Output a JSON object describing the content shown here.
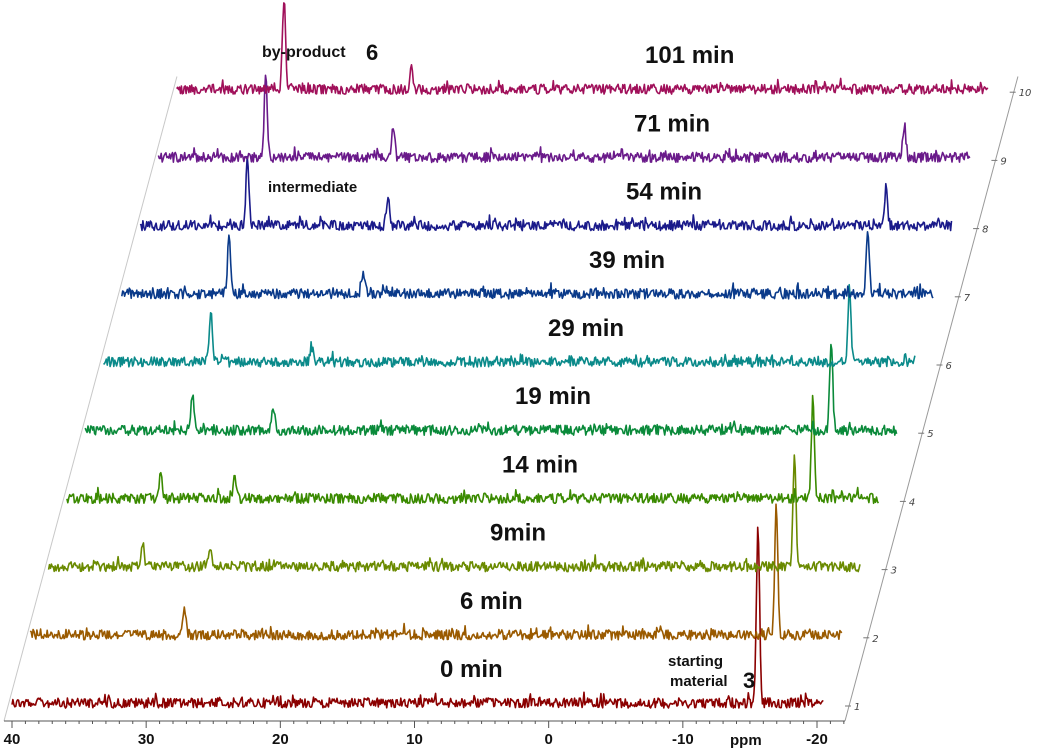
{
  "chart_data": {
    "type": "line",
    "style": "stacked 3D waterfall NMR spectra",
    "xlabel": "ppm",
    "xlim": [
      40,
      -22
    ],
    "x_ticks": [
      "40",
      "30",
      "20",
      "10",
      "0",
      "-10",
      "-20"
    ],
    "depth_ticks": [
      "1",
      "2",
      "3",
      "4",
      "5",
      "6",
      "7",
      "8",
      "9",
      "10"
    ],
    "series": [
      {
        "name": "0 min",
        "color": "#8b0000",
        "peaks": [
          {
            "ppm": -15.6,
            "height": 9.0
          }
        ],
        "noise": 1.0
      },
      {
        "name": "6 min",
        "color": "#9a5a00",
        "peaks": [
          {
            "ppm": -15.6,
            "height": 6.5
          },
          {
            "ppm": 28.5,
            "height": 1.2
          }
        ],
        "noise": 1.0
      },
      {
        "name": "9min",
        "color": "#6a8a00",
        "peaks": [
          {
            "ppm": -15.6,
            "height": 5.5
          },
          {
            "ppm": 33.0,
            "height": 1.2
          },
          {
            "ppm": 28.0,
            "height": 1.0
          }
        ],
        "noise": 1.0
      },
      {
        "name": "14 min",
        "color": "#3a8a00",
        "peaks": [
          {
            "ppm": -15.6,
            "height": 5.0
          },
          {
            "ppm": 33.0,
            "height": 1.4
          },
          {
            "ppm": 27.5,
            "height": 1.0
          }
        ],
        "noise": 1.0
      },
      {
        "name": "19 min",
        "color": "#0a8a3a",
        "peaks": [
          {
            "ppm": -15.6,
            "height": 4.5
          },
          {
            "ppm": 32.0,
            "height": 1.8
          },
          {
            "ppm": 26.0,
            "height": 1.2
          }
        ],
        "noise": 1.0
      },
      {
        "name": "29 min",
        "color": "#0a8a8a",
        "peaks": [
          {
            "ppm": -15.6,
            "height": 3.5
          },
          {
            "ppm": 32.0,
            "height": 2.5
          },
          {
            "ppm": 24.5,
            "height": 0.8
          }
        ],
        "noise": 1.0
      },
      {
        "name": "39 min",
        "color": "#0a3a8a",
        "peaks": [
          {
            "ppm": -15.6,
            "height": 3.0
          },
          {
            "ppm": 32.0,
            "height": 3.0
          },
          {
            "ppm": 22.0,
            "height": 1.0
          }
        ],
        "noise": 1.0
      },
      {
        "name": "54 min",
        "color": "#1a1a8a",
        "peaks": [
          {
            "ppm": -15.6,
            "height": 2.0
          },
          {
            "ppm": 32.0,
            "height": 3.4
          },
          {
            "ppm": 21.5,
            "height": 1.2
          }
        ],
        "noise": 1.0
      },
      {
        "name": "71 min",
        "color": "#6a1a8a",
        "peaks": [
          {
            "ppm": -15.6,
            "height": 1.6
          },
          {
            "ppm": 32.0,
            "height": 4.0
          },
          {
            "ppm": 22.5,
            "height": 1.6
          }
        ],
        "noise": 1.0
      },
      {
        "name": "101 min",
        "color": "#a0105a",
        "peaks": [
          {
            "ppm": 32.0,
            "height": 4.5
          },
          {
            "ppm": 22.5,
            "height": 1.0
          }
        ],
        "noise": 1.0
      }
    ],
    "annotations": {
      "byproduct_text": "by-product",
      "byproduct_num": "6",
      "intermediate": "intermediate",
      "starting_line1": "starting",
      "starting_line2": "material",
      "starting_num": "3"
    },
    "grid": false,
    "legend": "none"
  }
}
